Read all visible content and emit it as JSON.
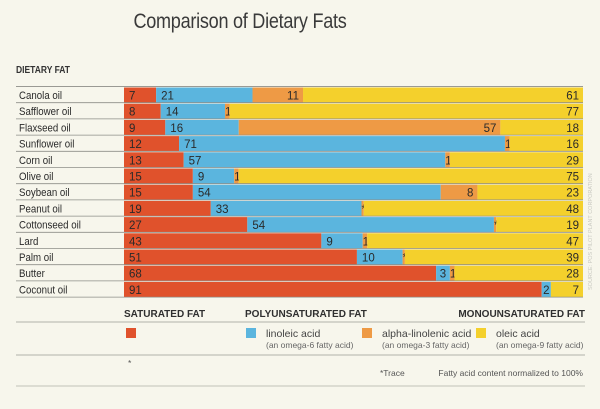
{
  "chart_data": {
    "type": "bar",
    "orientation": "horizontal-stacked",
    "title": "Comparison of Dietary Fats",
    "ylabel": "DIETARY FAT",
    "xlabel": "",
    "xlim": [
      0,
      100
    ],
    "note_normalized": "Fatty acid content normalized to 100%",
    "note_trace": "*Trace",
    "trace_marker": "*",
    "credit": "SOURCE: POS PILOT PLANT CORPORATION",
    "categories": [
      "Canola oil",
      "Safflower oil",
      "Flaxseed oil",
      "Sunflower oil",
      "Corn oil",
      "Olive oil",
      "Soybean oil",
      "Peanut oil",
      "Cottonseed oil",
      "Lard",
      "Palm oil",
      "Butter",
      "Coconut oil"
    ],
    "series": [
      {
        "name": "saturated fat",
        "group": "SATURATED FAT",
        "color": "#e0522c",
        "values": [
          7,
          8,
          9,
          12,
          13,
          15,
          15,
          19,
          27,
          43,
          51,
          68,
          91
        ],
        "labels": [
          "7",
          "8",
          "9",
          "12",
          "13",
          "15",
          "15",
          "19",
          "27",
          "43",
          "51",
          "68",
          "91"
        ]
      },
      {
        "name": "linoleic acid",
        "group": "POLYUNSATURATED FAT",
        "sub": "(an omega-6 fatty acid)",
        "color": "#5bb5de",
        "values": [
          21,
          14,
          16,
          71,
          57,
          9,
          54,
          33,
          54,
          9,
          10,
          3,
          2
        ],
        "labels": [
          "21",
          "14",
          "16",
          "71",
          "57",
          "9",
          "54",
          "33",
          "54",
          "9",
          "10",
          "3",
          "2"
        ]
      },
      {
        "name": "alpha-linolenic acid",
        "group": "POLYUNSATURATED FAT",
        "sub": "(an omega-3 fatty acid)",
        "color": "#ee9a45",
        "values": [
          11,
          1,
          57,
          1,
          1,
          1,
          8,
          0.5,
          0.5,
          1,
          0.5,
          1,
          0
        ],
        "labels": [
          "11",
          "1",
          "57",
          "1",
          "1",
          "1",
          "8",
          "*",
          "*",
          "1",
          "*",
          "1",
          ""
        ]
      },
      {
        "name": "oleic acid",
        "group": "MONOUNSATURATED FAT",
        "sub": "(an omega-9 fatty acid)",
        "color": "#f4d02c",
        "values": [
          61,
          77,
          18,
          16,
          29,
          75,
          23,
          48,
          19,
          47,
          39,
          28,
          7
        ],
        "labels": [
          "61",
          "77",
          "18",
          "16",
          "29",
          "75",
          "23",
          "48",
          "19",
          "47",
          "39",
          "28",
          "7"
        ]
      }
    ],
    "legend": {
      "groups": [
        "SATURATED FAT",
        "POLYUNSATURATED FAT",
        "MONOUNSATURATED FAT"
      ],
      "placement": "bottom"
    }
  }
}
